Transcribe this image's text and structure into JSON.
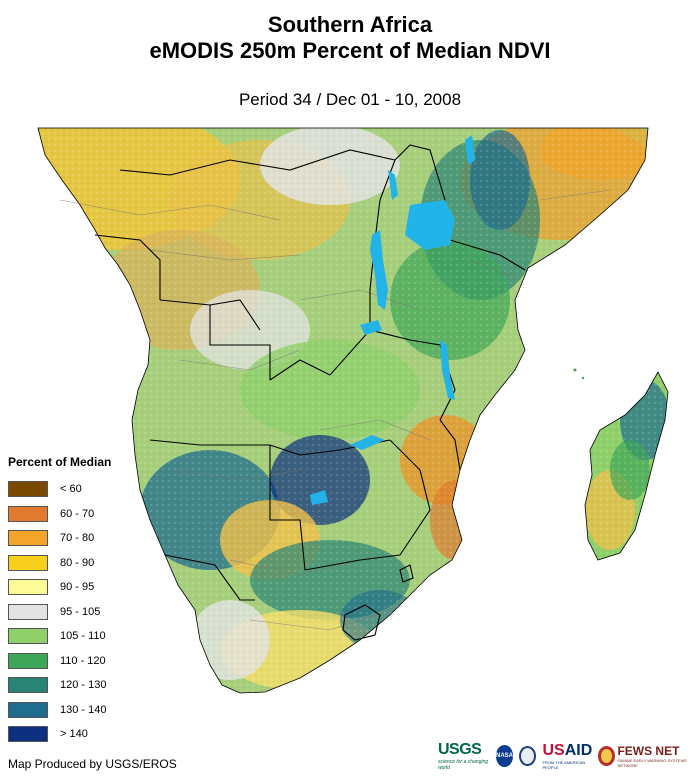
{
  "header": {
    "title_line1": "Southern Africa",
    "title_line2": "eMODIS 250m Percent of Median NDVI",
    "subtitle": "Period 34 / Dec 01 - 10, 2008"
  },
  "legend": {
    "title": "Percent of Median",
    "items": [
      {
        "label": "< 60",
        "color": "#7a4a00"
      },
      {
        "label": "60 - 70",
        "color": "#df7a2e"
      },
      {
        "label": "70 - 80",
        "color": "#f2a52a"
      },
      {
        "label": "80 - 90",
        "color": "#f7cf1c"
      },
      {
        "label": "90 - 95",
        "color": "#fdfb97"
      },
      {
        "label": "95 - 105",
        "color": "#e3e3e3"
      },
      {
        "label": "105 - 110",
        "color": "#8fd06b"
      },
      {
        "label": "110 - 120",
        "color": "#3ea658"
      },
      {
        "label": "120 - 130",
        "color": "#2a8476"
      },
      {
        "label": "130 - 140",
        "color": "#206d8e"
      },
      {
        "label": "> 140",
        "color": "#0d2f80"
      }
    ]
  },
  "footer": {
    "credit": "Map Produced by USGS/EROS"
  },
  "logos": {
    "usgs": "USGS",
    "usgs_tagline": "science for a changing world",
    "nasa": "NASA",
    "usaid_prefix": "US",
    "usaid_suffix": "AID",
    "usaid_tagline": "FROM THE AMERICAN PEOPLE",
    "fews": "FEWS NET",
    "fews_tagline": "FAMINE EARLY WARNING SYSTEMS NETWORK"
  },
  "map": {
    "water_color": "#22b4e8",
    "border_color": "#000000",
    "admin_color": "#777777"
  }
}
